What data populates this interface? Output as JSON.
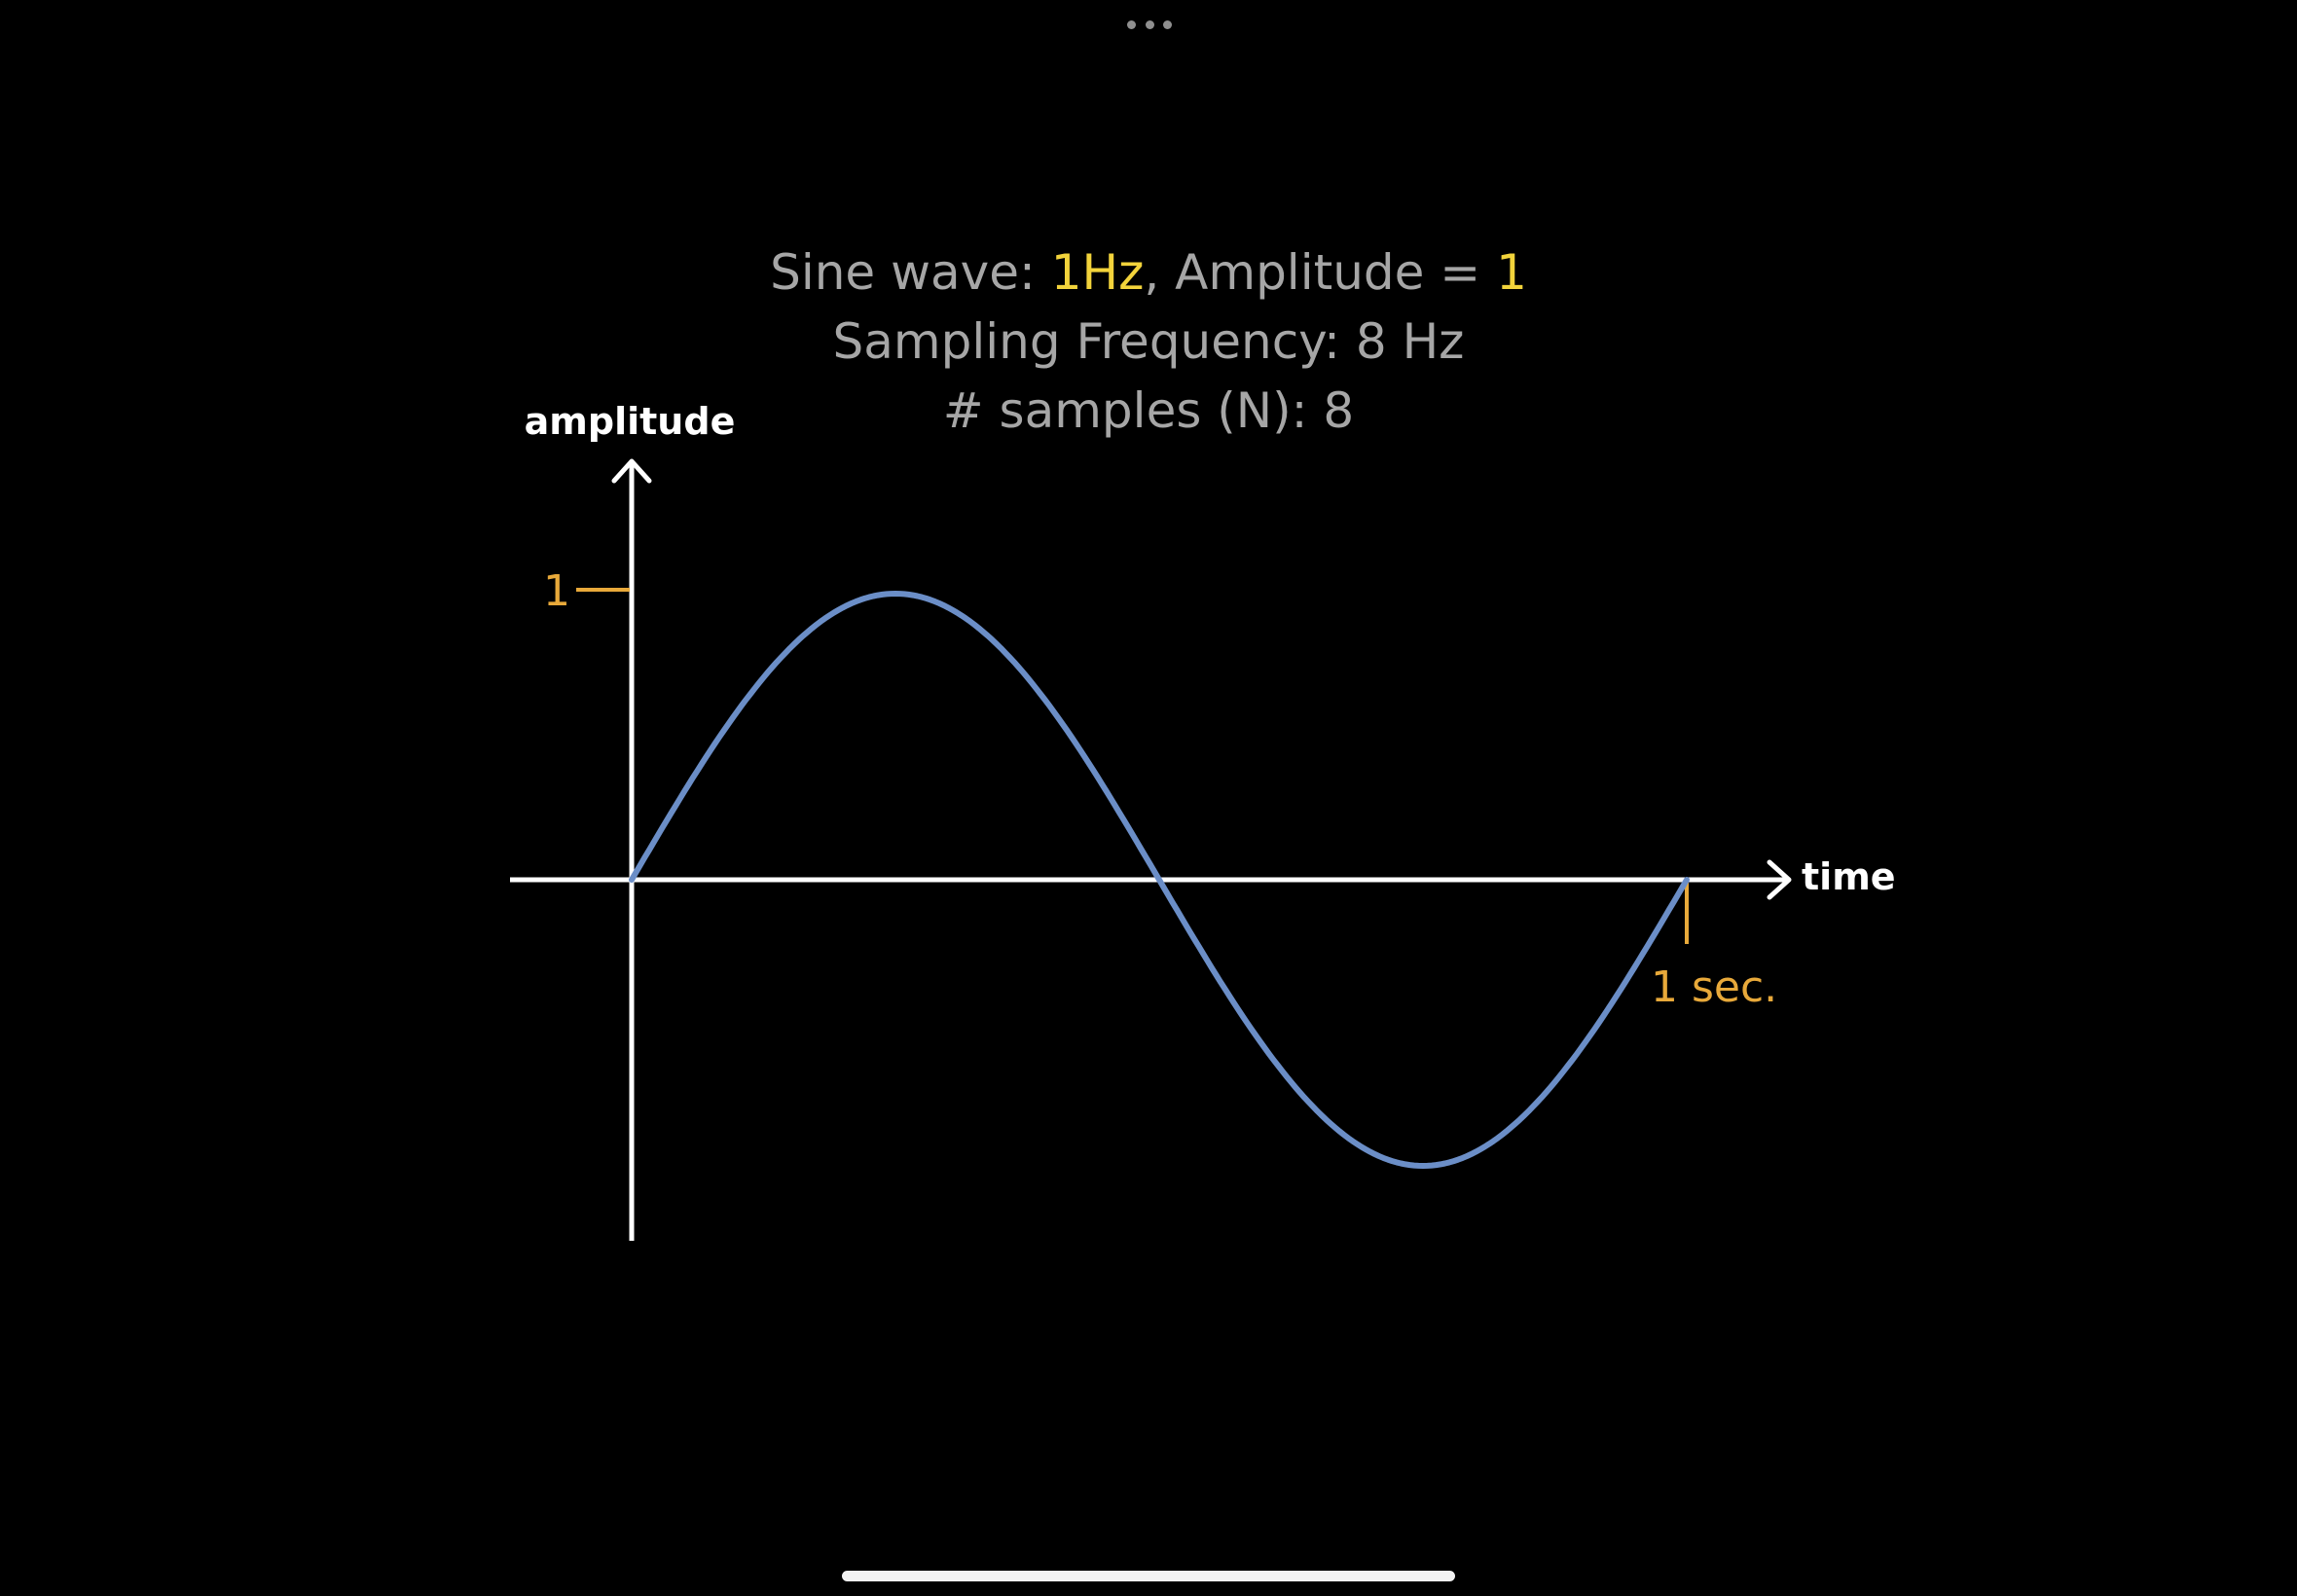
{
  "caption": {
    "line1": {
      "prefix": "Sine wave: ",
      "frequency": "1Hz",
      "middle": ", Amplitude = ",
      "amplitude": "1"
    },
    "line2": "Sampling Frequency: 8 Hz",
    "line3": "# samples (N): 8"
  },
  "chart_data": {
    "type": "line",
    "y_axis_label": "amplitude",
    "x_axis_label": "time",
    "y_tick_label": "1",
    "x_tick_label": "1 sec.",
    "series": [
      {
        "function": "sin(2*pi*t)",
        "frequency_hz": 1,
        "amplitude": 1,
        "t_range": [
          0,
          1
        ],
        "x": [
          0,
          0.125,
          0.25,
          0.375,
          0.5,
          0.625,
          0.75,
          0.875,
          1
        ],
        "y": [
          0,
          0.707,
          1,
          0.707,
          0,
          -0.707,
          -1,
          -0.707,
          0
        ]
      }
    ],
    "xlim": [
      0,
      1
    ],
    "ylim": [
      -1,
      1
    ]
  },
  "colors": {
    "background": "#000000",
    "caption_text": "#a6a6a6",
    "caption_highlight": "#f2d33b",
    "axis": "#ffffff",
    "curve": "#6b8ec7",
    "tick_marker": "#e8a93a"
  },
  "icons": {
    "multitask": "ellipsis-icon",
    "home": "home-indicator"
  }
}
